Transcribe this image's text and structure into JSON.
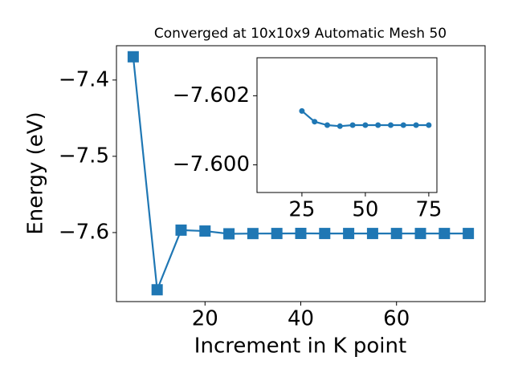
{
  "chart_data": [
    {
      "type": "line",
      "title": "Converged at 10x10x9 Automatic Mesh 50",
      "x_label": "Increment in K point",
      "y_label": "Energy (eV)",
      "x": [
        5,
        10,
        15,
        20,
        25,
        30,
        35,
        40,
        45,
        50,
        55,
        60,
        65,
        70,
        75
      ],
      "series": [
        {
          "color": "#1f77b4",
          "marker": "square",
          "values": [
            -7.3695,
            -7.675,
            -7.5968,
            -7.598,
            -7.6016,
            -7.6013,
            -7.6012,
            -7.6011,
            -7.6012,
            -7.6012,
            -7.6012,
            -7.6012,
            -7.6012,
            -7.6012,
            -7.6012
          ]
        }
      ],
      "xlim": [
        1.5,
        78.5
      ],
      "xticks": [
        20,
        40,
        60
      ],
      "ylim": [
        -7.6905,
        -7.355
      ],
      "yticks": [
        {
          "value": -7.6,
          "label": "−7.6"
        },
        {
          "value": -7.5,
          "label": "−7.5"
        },
        {
          "value": -7.4,
          "label": "−7.4"
        }
      ]
    },
    {
      "type": "line",
      "x": [
        25,
        30,
        35,
        40,
        45,
        50,
        55,
        60,
        65,
        70,
        75
      ],
      "series": [
        {
          "color": "#1f77b4",
          "marker": "circle",
          "values": [
            -7.60156,
            -7.60125,
            -7.60115,
            -7.60112,
            -7.60115,
            -7.60115,
            -7.60115,
            -7.60115,
            -7.60115,
            -7.60115,
            -7.60115
          ]
        }
      ],
      "xlim": [
        7.3,
        78.2
      ],
      "xticks": [
        25,
        50,
        75
      ],
      "ylim": [
        -7.5992,
        -7.6031
      ],
      "yticks": [
        {
          "value": -7.6,
          "label": "−7.600"
        },
        {
          "value": -7.602,
          "label": "−7.602"
        }
      ]
    }
  ]
}
